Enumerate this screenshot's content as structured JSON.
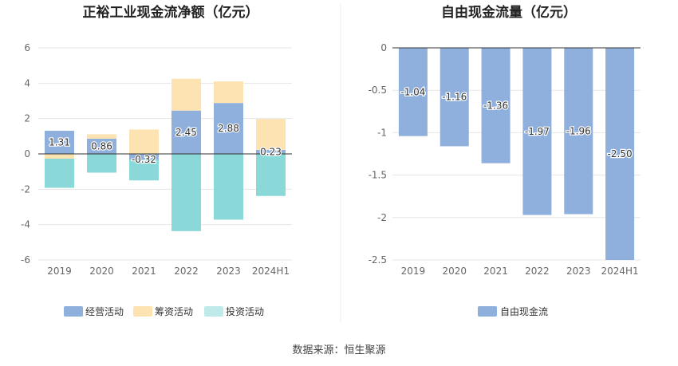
{
  "colors": {
    "operating": "#8fb0dc",
    "financing": "#fde3b2",
    "investing": "#8ad8d8",
    "investing_legend": "#bfeaea",
    "fcf": "#8fb0dc",
    "grid": "#e6e6e6",
    "zero": "#333333"
  },
  "chart_data": [
    {
      "type": "bar",
      "stacked": true,
      "title": "正裕工业现金流净额（亿元）",
      "categories": [
        "2019",
        "2020",
        "2021",
        "2022",
        "2023",
        "2024H1"
      ],
      "series": [
        {
          "name": "经营活动",
          "values": [
            1.31,
            0.86,
            -0.32,
            2.45,
            2.88,
            0.23
          ]
        },
        {
          "name": "筹资活动",
          "values": [
            -0.27,
            0.25,
            1.38,
            1.8,
            1.22,
            1.75
          ]
        },
        {
          "name": "投资活动",
          "values": [
            -1.65,
            -1.06,
            -1.18,
            -4.37,
            -3.72,
            -2.38
          ]
        }
      ],
      "data_labels": [
        "1.31",
        "0.86",
        "-0.32",
        "2.45",
        "2.88",
        "0.23"
      ],
      "ylim": [
        -6,
        6
      ],
      "yticks": [
        "6",
        "4",
        "2",
        "0",
        "-2",
        "-4",
        "-6"
      ],
      "grid": true,
      "legend": "bottom"
    },
    {
      "type": "bar",
      "title": "自由现金流量（亿元）",
      "categories": [
        "2019",
        "2020",
        "2021",
        "2022",
        "2023",
        "2024H1"
      ],
      "series": [
        {
          "name": "自由现金流",
          "values": [
            -1.04,
            -1.16,
            -1.36,
            -1.97,
            -1.96,
            -2.5
          ]
        }
      ],
      "data_labels": [
        "-1.04",
        "-1.16",
        "-1.36",
        "-1.97",
        "-1.96",
        "-2.50"
      ],
      "ylim": [
        -2.5,
        0
      ],
      "yticks": [
        "0",
        "-0.5",
        "-1",
        "-1.5",
        "-2",
        "-2.5"
      ],
      "grid": true,
      "legend": "bottom"
    }
  ],
  "footer": {
    "source": "数据来源：恒生聚源"
  }
}
